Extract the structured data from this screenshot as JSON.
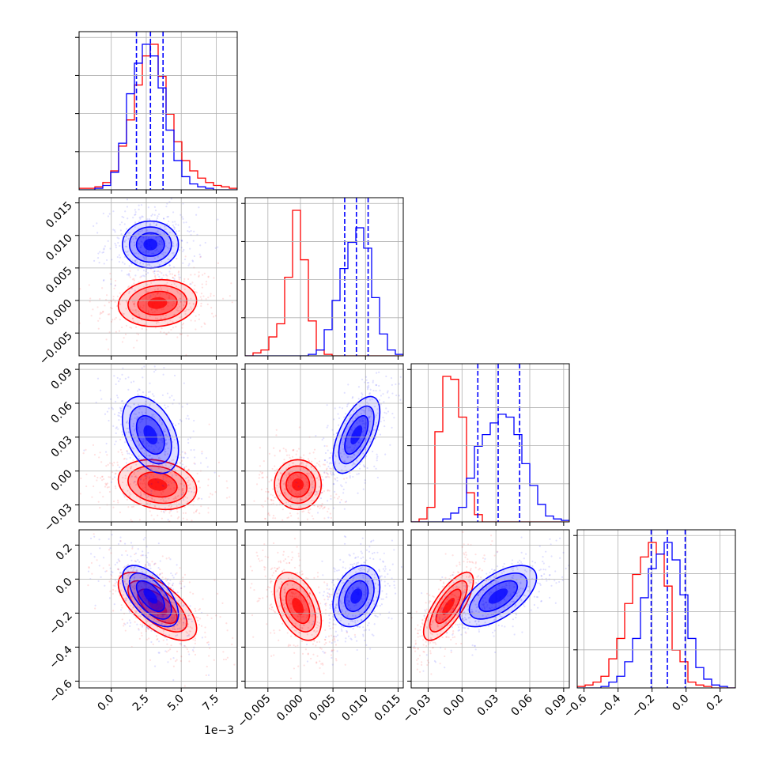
{
  "chart_data": {
    "type": "corner",
    "n_params": 4,
    "grid": true,
    "colors": {
      "red": "#ff0000",
      "blue": "#0000ff"
    },
    "params": [
      {
        "range": [
          -0.0023,
          0.009
        ],
        "ticks": [
          0.0,
          0.0025,
          0.005,
          0.0075
        ],
        "tick_labels": [
          "0.0",
          "2.5",
          "5.0",
          "7.5"
        ],
        "offset_label": "1e−3"
      },
      {
        "range": [
          -0.0085,
          0.0158
        ],
        "ticks": [
          -0.005,
          0.0,
          0.005,
          0.01,
          0.015
        ],
        "tick_labels": [
          "−0.005",
          "0.000",
          "0.005",
          "0.010",
          "0.015"
        ]
      },
      {
        "range": [
          -0.045,
          0.095
        ],
        "ticks": [
          -0.03,
          0.0,
          0.03,
          0.06,
          0.09
        ],
        "tick_labels": [
          "−0.03",
          "0.00",
          "0.03",
          "0.06",
          "0.09"
        ]
      },
      {
        "range": [
          -0.64,
          0.29
        ],
        "ticks": [
          -0.6,
          -0.4,
          -0.2,
          0.0,
          0.2
        ],
        "tick_labels": [
          "−0.6",
          "−0.4",
          "−0.2",
          "0.0",
          "0.2"
        ]
      }
    ],
    "samples": [
      {
        "color": "red",
        "mean": [
          0.0033,
          -0.0004,
          -0.012,
          -0.16
        ],
        "std": [
          0.0014,
          0.0018,
          0.011,
          0.1
        ]
      },
      {
        "color": "blue",
        "mean": [
          0.0028,
          0.0086,
          0.032,
          -0.1
        ],
        "std": [
          0.001,
          0.0018,
          0.017,
          0.09
        ]
      }
    ],
    "correlations": [
      {
        "color": "red",
        "pairs": {
          "1-0": 0.1,
          "2-0": -0.2,
          "2-1": 0.0,
          "3-0": -0.65,
          "3-1": -0.45,
          "3-2": 0.75
        }
      },
      {
        "color": "blue",
        "pairs": {
          "1-0": 0.0,
          "2-0": -0.4,
          "2-1": 0.6,
          "3-0": -0.6,
          "3-1": 0.3,
          "3-2": 0.6
        }
      }
    ],
    "histograms": [
      {
        "param_index": 0,
        "bins": [
          -0.0023,
          0.009
        ],
        "series": [
          {
            "color": "red",
            "counts": [
              1,
              1,
              2,
              5,
              13,
              30,
              48,
              72,
              92,
              100,
              78,
              52,
              33,
              20,
              13,
              8,
              5,
              3,
              2,
              1
            ]
          },
          {
            "color": "blue",
            "counts": [
              0,
              0,
              1,
              3,
              12,
              32,
              66,
              87,
              100,
              92,
              70,
              41,
              20,
              9,
              4,
              2,
              1,
              0,
              0,
              0
            ]
          }
        ],
        "quantiles": [
          0.0018,
          0.0028,
          0.0037
        ]
      },
      {
        "param_index": 1,
        "bins": [
          -0.0085,
          0.0158
        ],
        "series": [
          {
            "color": "red",
            "counts": [
              0,
              2,
              4,
              13,
              22,
              54,
              100,
              66,
              24,
              4,
              1,
              0,
              0,
              0,
              0,
              0,
              0,
              0,
              0,
              0
            ]
          },
          {
            "color": "blue",
            "counts": [
              0,
              0,
              0,
              0,
              0,
              0,
              0,
              0,
              1,
              4,
              18,
              38,
              60,
              78,
              88,
              74,
              40,
              15,
              4,
              1
            ]
          }
        ],
        "quantiles": [
          0.0068,
          0.0086,
          0.0104
        ]
      },
      {
        "param_index": 2,
        "bins": [
          -0.045,
          0.095
        ],
        "series": [
          {
            "color": "red",
            "counts": [
              0,
              2,
              10,
              62,
              100,
              98,
              72,
              20,
              5,
              0,
              0,
              0,
              0,
              0,
              0,
              0,
              0,
              0,
              0,
              0
            ]
          },
          {
            "color": "blue",
            "counts": [
              0,
              0,
              0,
              0,
              2,
              6,
              10,
              30,
              52,
              60,
              68,
              74,
              72,
              60,
              40,
              25,
              12,
              4,
              2,
              1
            ]
          }
        ],
        "quantiles": [
          0.014,
          0.032,
          0.051
        ]
      },
      {
        "param_index": 3,
        "bins": [
          -0.64,
          0.29
        ],
        "series": [
          {
            "color": "red",
            "counts": [
              1,
              2,
              4,
              8,
              20,
              34,
              58,
              78,
              90,
              100,
              92,
              70,
              26,
              18,
              4,
              2,
              1,
              0,
              0,
              0
            ]
          },
          {
            "color": "blue",
            "counts": [
              0,
              0,
              0,
              1,
              4,
              8,
              18,
              34,
              62,
              82,
              92,
              100,
              88,
              64,
              34,
              14,
              6,
              2,
              1,
              0
            ]
          }
        ],
        "quantiles": [
          -0.205,
          -0.11,
          -0.005
        ]
      }
    ]
  }
}
